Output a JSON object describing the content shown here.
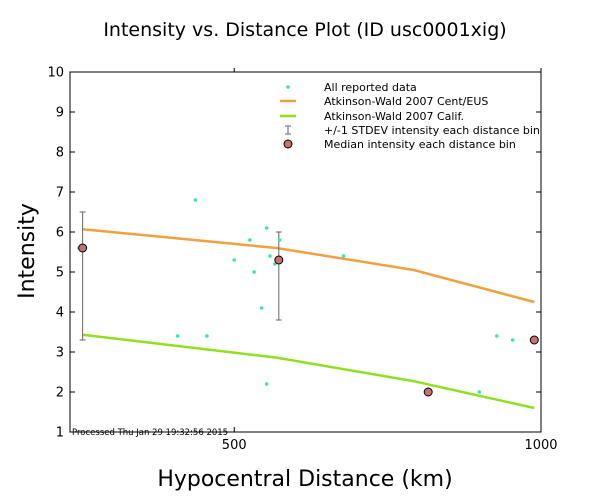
{
  "colors": {
    "all_data": "#40e0b8",
    "cent_eus": "#f0a040",
    "calif": "#90e020",
    "median_fill": "#c87070",
    "stdev": "#666666"
  },
  "chart_data": {
    "type": "scatter",
    "title": "Intensity vs. Distance Plot (ID usc0001xig)",
    "xlabel": "Hypocentral Distance (km)",
    "ylabel": "Intensity",
    "xscale": "log",
    "xlim": [
      345,
      1000
    ],
    "ylim": [
      1,
      10
    ],
    "xticks": [
      500,
      1000
    ],
    "yticks": [
      1,
      2,
      3,
      4,
      5,
      6,
      7,
      8,
      9,
      10
    ],
    "grid": false,
    "legend_position": "top-right",
    "legend": [
      "All reported data",
      "Atkinson-Wald 2007 Cent/EUS",
      "Atkinson-Wald 2007 Calif.",
      "+/-1 STDEV intensity each distance bin",
      "Median intensity each distance bin"
    ],
    "series": [
      {
        "name": "All reported data",
        "type": "scatter",
        "points": [
          [
            352,
            5.6
          ],
          [
            440,
            3.4
          ],
          [
            458,
            6.8
          ],
          [
            470,
            3.4
          ],
          [
            500,
            5.3
          ],
          [
            518,
            5.8
          ],
          [
            523,
            5.0
          ],
          [
            532,
            4.1
          ],
          [
            538,
            6.1
          ],
          [
            538,
            2.2
          ],
          [
            542,
            5.4
          ],
          [
            548,
            5.2
          ],
          [
            554,
            5.8
          ],
          [
            640,
            5.4
          ],
          [
            870,
            2.0
          ],
          [
            905,
            3.4
          ],
          [
            938,
            3.3
          ]
        ]
      },
      {
        "name": "Atkinson-Wald 2007 Cent/EUS",
        "type": "line",
        "points": [
          [
            355,
            6.07
          ],
          [
            550,
            5.6
          ],
          [
            750,
            5.05
          ],
          [
            985,
            4.25
          ]
        ]
      },
      {
        "name": "Atkinson-Wald 2007 Calif.",
        "type": "line",
        "points": [
          [
            355,
            3.43
          ],
          [
            550,
            2.86
          ],
          [
            750,
            2.27
          ],
          [
            985,
            1.6
          ]
        ]
      },
      {
        "name": "+/-1 STDEV intensity each distance bin",
        "type": "errorbar",
        "bars": [
          {
            "x": 355,
            "low": 3.3,
            "high": 6.5
          },
          {
            "x": 553,
            "low": 3.8,
            "high": 6.0
          },
          {
            "x": 985,
            "low": 3.3,
            "high": 3.3
          }
        ]
      },
      {
        "name": "Median intensity each distance bin",
        "type": "scatter",
        "points": [
          [
            355,
            5.6
          ],
          [
            553,
            5.3
          ],
          [
            775,
            2.0
          ],
          [
            985,
            3.3
          ]
        ]
      }
    ],
    "annotation": "Processed Thu Jan 29 19:32:56 2015"
  }
}
